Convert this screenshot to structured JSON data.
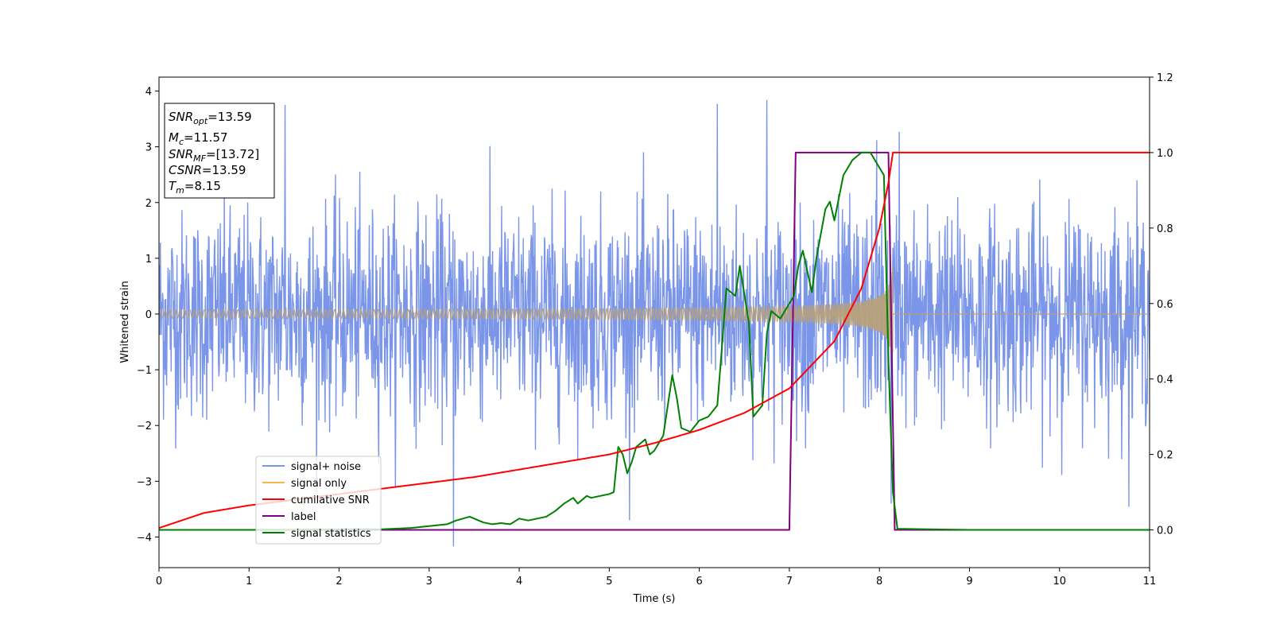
{
  "chart_data": {
    "type": "line",
    "xlabel": "Time (s)",
    "ylabel": "Whitened strain",
    "xlim": [
      0,
      11
    ],
    "ylim_left": [
      -4.55,
      4.25
    ],
    "ylim_right": [
      -0.1,
      1.2
    ],
    "x_ticks": [
      "0",
      "1",
      "2",
      "3",
      "4",
      "5",
      "6",
      "7",
      "8",
      "9",
      "10",
      "11"
    ],
    "y_ticks_left": [
      "−4",
      "−3",
      "−2",
      "−1",
      "0",
      "1",
      "2",
      "3",
      "4"
    ],
    "y_ticks_right": [
      "0.0",
      "0.2",
      "0.4",
      "0.6",
      "0.8",
      "1.0",
      "1.2"
    ],
    "grid": false,
    "legend_position": "lower-left",
    "info_box": {
      "lines": [
        {
          "sym": "SNR",
          "sub": "opt",
          "value": "=13.59"
        },
        {
          "sym": "M",
          "sub": "c",
          "value": "=11.57"
        },
        {
          "sym": "SNR",
          "sub": "MF",
          "value": "=[13.72]"
        },
        {
          "sym": "CSNR",
          "sub": "",
          "value": "=13.59"
        },
        {
          "sym": "T",
          "sub": "m",
          "value": "=8.15"
        }
      ]
    },
    "series": [
      {
        "name": "signal+ noise",
        "axis": "left",
        "color": "#7b96e8",
        "description_stats": {
          "std": 0.92,
          "min": -4.17,
          "max": 3.85
        },
        "sample_rate_hz": 200,
        "spikes": [
          {
            "x": 1.4,
            "y": 3.75
          },
          {
            "x": 6.2,
            "y": 3.77
          },
          {
            "x": 6.75,
            "y": 3.84
          },
          {
            "x": 3.27,
            "y": -4.17
          },
          {
            "x": 8.13,
            "y": -3.4
          },
          {
            "x": 7.97,
            "y": 3.12
          },
          {
            "x": 8.22,
            "y": 3.27
          }
        ]
      },
      {
        "name": "signal only",
        "axis": "left",
        "color": "#f5b44d",
        "fill_color": "#b8a07a",
        "chirp": {
          "start": 0,
          "merger": 8.15,
          "end_amplitude": 1.0,
          "start_amplitude": 0.04
        }
      },
      {
        "name": "cumilative SNR",
        "axis": "right",
        "color": "#ff0000",
        "x": [
          0,
          0.5,
          1,
          1.5,
          2,
          2.5,
          3,
          3.5,
          4,
          4.5,
          5,
          5.5,
          6,
          6.5,
          7,
          7.5,
          7.8,
          8.0,
          8.1,
          8.15,
          8.2,
          11
        ],
        "y": [
          0.005,
          0.045,
          0.065,
          0.08,
          0.095,
          0.11,
          0.125,
          0.14,
          0.16,
          0.18,
          0.2,
          0.23,
          0.265,
          0.31,
          0.375,
          0.5,
          0.64,
          0.8,
          0.92,
          1.0,
          1.0,
          1.0
        ]
      },
      {
        "name": "label",
        "axis": "right",
        "color": "#800080",
        "x": [
          0,
          7.0,
          7.07,
          8.1,
          8.17,
          11
        ],
        "y": [
          0,
          0,
          1,
          1,
          0,
          0
        ]
      },
      {
        "name": "signal statistics",
        "axis": "right",
        "color": "#008000",
        "x": [
          0,
          1,
          2,
          2.5,
          2.8,
          3.0,
          3.2,
          3.3,
          3.45,
          3.6,
          3.7,
          3.8,
          3.9,
          4.0,
          4.1,
          4.2,
          4.3,
          4.4,
          4.5,
          4.6,
          4.65,
          4.7,
          4.75,
          4.8,
          4.9,
          5.0,
          5.05,
          5.1,
          5.15,
          5.2,
          5.25,
          5.3,
          5.4,
          5.45,
          5.5,
          5.6,
          5.65,
          5.7,
          5.75,
          5.8,
          5.9,
          6.0,
          6.1,
          6.2,
          6.25,
          6.3,
          6.4,
          6.45,
          6.55,
          6.6,
          6.7,
          6.75,
          6.8,
          6.9,
          7.0,
          7.05,
          7.1,
          7.15,
          7.25,
          7.3,
          7.4,
          7.45,
          7.5,
          7.6,
          7.7,
          7.8,
          7.9,
          8.0,
          8.05,
          8.1,
          8.15,
          8.2,
          9,
          10,
          11
        ],
        "y": [
          0,
          0,
          0.001,
          0.002,
          0.005,
          0.01,
          0.015,
          0.025,
          0.035,
          0.02,
          0.015,
          0.018,
          0.015,
          0.03,
          0.025,
          0.03,
          0.035,
          0.05,
          0.07,
          0.085,
          0.07,
          0.08,
          0.09,
          0.085,
          0.09,
          0.095,
          0.1,
          0.22,
          0.2,
          0.15,
          0.18,
          0.22,
          0.24,
          0.2,
          0.21,
          0.25,
          0.33,
          0.41,
          0.35,
          0.27,
          0.26,
          0.29,
          0.3,
          0.33,
          0.48,
          0.64,
          0.62,
          0.7,
          0.55,
          0.3,
          0.33,
          0.52,
          0.58,
          0.56,
          0.6,
          0.62,
          0.7,
          0.74,
          0.63,
          0.72,
          0.85,
          0.87,
          0.82,
          0.94,
          0.98,
          1.0,
          1.0,
          0.96,
          0.94,
          0.45,
          0.1,
          0.003,
          0,
          0,
          0
        ]
      }
    ]
  }
}
